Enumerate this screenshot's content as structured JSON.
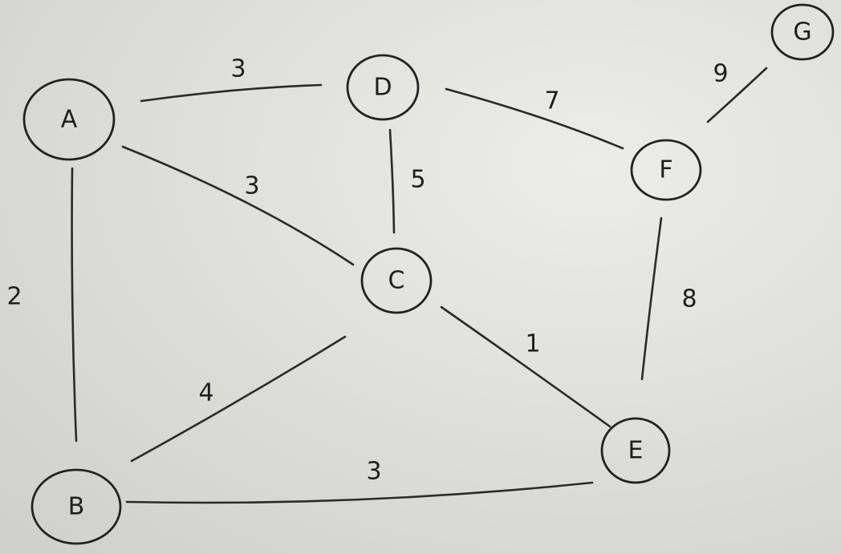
{
  "nodes": {
    "A": "A",
    "B": "B",
    "C": "C",
    "D": "D",
    "E": "E",
    "F": "F",
    "G": "G"
  },
  "edges": {
    "A_D": "3",
    "A_C": "3",
    "A_B": "2",
    "D_C": "5",
    "D_F": "7",
    "F_G": "9",
    "F_E": "8",
    "C_E": "1",
    "C_B": "4",
    "B_E": "3"
  }
}
